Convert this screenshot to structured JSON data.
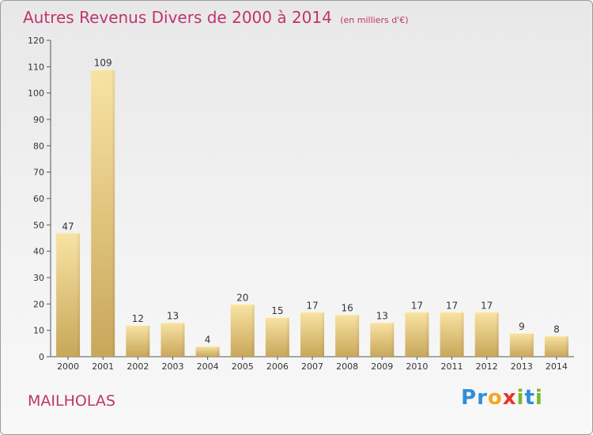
{
  "title": "Autres Revenus Divers de 2000 à 2014",
  "subtitle": "(en milliers d'€)",
  "place": "MAILHOLAS",
  "logo": "Proxiti",
  "chart_data": {
    "type": "bar",
    "categories": [
      "2000",
      "2001",
      "2002",
      "2003",
      "2004",
      "2005",
      "2006",
      "2007",
      "2008",
      "2009",
      "2010",
      "2011",
      "2012",
      "2013",
      "2014"
    ],
    "values": [
      47,
      109,
      12,
      13,
      4,
      20,
      15,
      17,
      16,
      13,
      17,
      17,
      17,
      9,
      8
    ],
    "ylim": [
      0,
      120
    ],
    "yticks": [
      0,
      10,
      20,
      30,
      40,
      50,
      60,
      70,
      80,
      90,
      100,
      110,
      120
    ],
    "grid": false,
    "colors": {
      "bar_light": "#f7df9c",
      "bar_dark": "#c9a95c",
      "title": "#c0346e"
    }
  }
}
